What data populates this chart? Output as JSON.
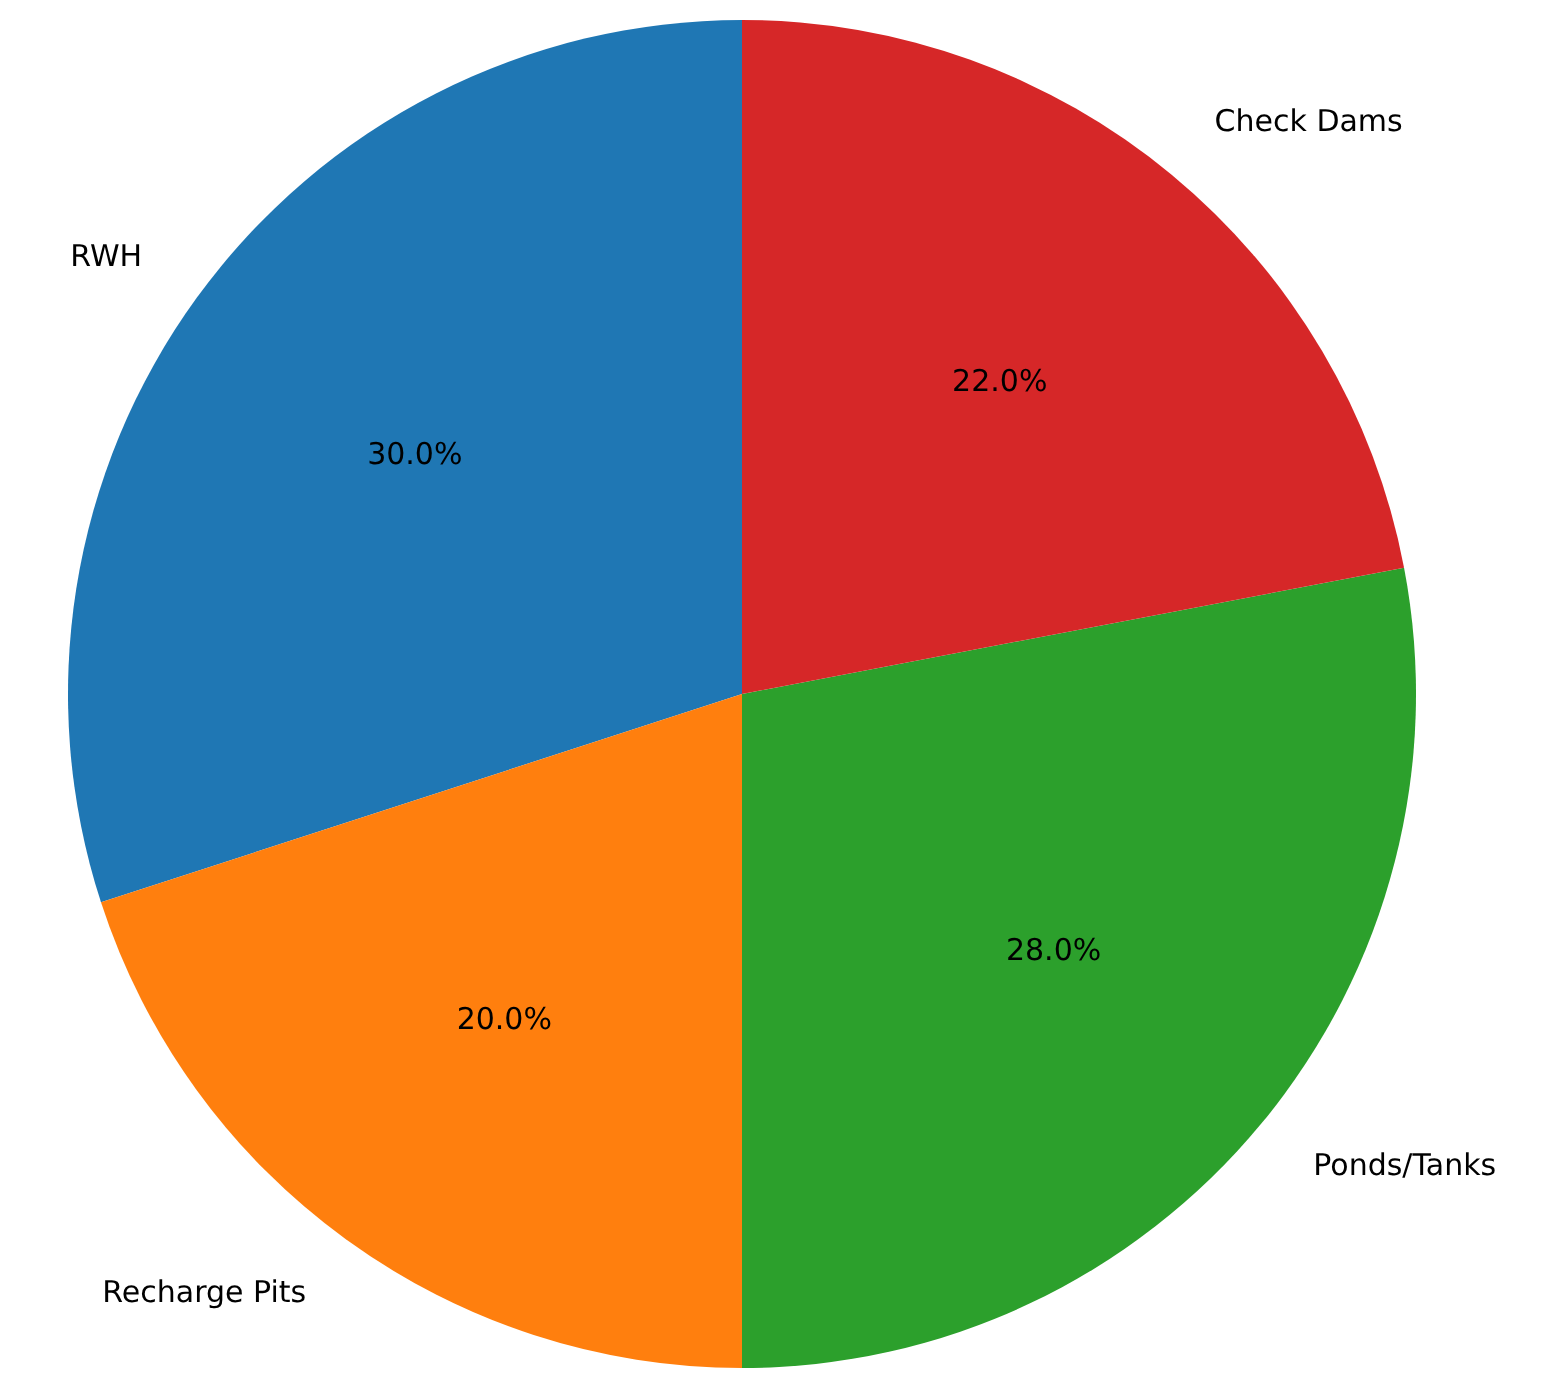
{
  "chart_data": {
    "type": "pie",
    "categories": [
      "RWH",
      "Recharge Pits",
      "Ponds/Tanks",
      "Check Dams"
    ],
    "values": [
      30,
      20,
      28,
      22
    ],
    "colors": [
      "#1f77b4",
      "#ff7f0e",
      "#2ca02c",
      "#d62728"
    ],
    "value_labels": [
      "30.0%",
      "20.0%",
      "28.0%",
      "22.0%"
    ]
  }
}
